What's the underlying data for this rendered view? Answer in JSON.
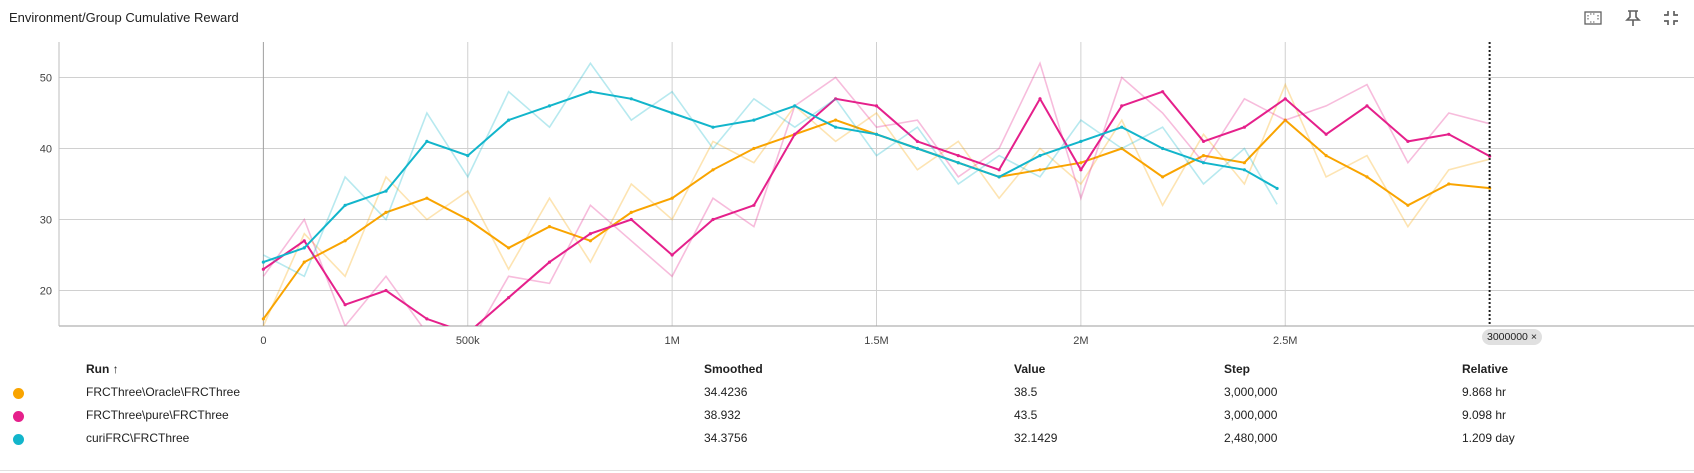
{
  "title": "Environment/Group Cumulative Reward",
  "toolbar": {
    "fit_icon": "fit-to-domain-icon",
    "pin_icon": "pin-icon",
    "collapse_icon": "exit-fullscreen-icon"
  },
  "step_chip": "3000000",
  "chip_close": "×",
  "legend": {
    "headers": {
      "run": "Run ↑",
      "smoothed": "Smoothed",
      "value": "Value",
      "step": "Step",
      "relative": "Relative"
    },
    "rows": [
      {
        "run": "FRCThree\\Oracle\\FRCThree",
        "smoothed": "34.4236",
        "value": "38.5",
        "step": "3,000,000",
        "relative": "9.868 hr",
        "color": "#f9a400"
      },
      {
        "run": "FRCThree\\pure\\FRCThree",
        "smoothed": "38.932",
        "value": "43.5",
        "step": "3,000,000",
        "relative": "9.098 hr",
        "color": "#e5208b"
      },
      {
        "run": "curiFRC\\FRCThree",
        "smoothed": "34.3756",
        "value": "32.1429",
        "step": "2,480,000",
        "relative": "1.209 day",
        "color": "#12b5cb"
      }
    ]
  },
  "chart_data": {
    "type": "line",
    "title": "Environment/Group Cumulative Reward",
    "xlabel": "",
    "ylabel": "",
    "xlim": [
      -500000,
      3500000
    ],
    "ylim": [
      15,
      55
    ],
    "x_ticks": [
      0,
      500000,
      1000000,
      1500000,
      2000000,
      2500000
    ],
    "x_tick_labels": [
      "0",
      "500k",
      "1M",
      "1.5M",
      "2M",
      "2.5M"
    ],
    "y_ticks": [
      20,
      30,
      40,
      50
    ],
    "y_tick_labels": [
      "20",
      "30",
      "40",
      "50"
    ],
    "grid": true,
    "cursor_step": 3000000,
    "series": [
      {
        "name": "FRCThree\\Oracle\\FRCThree",
        "color": "#f9a400",
        "x": [
          0,
          100000,
          200000,
          300000,
          400000,
          500000,
          600000,
          700000,
          800000,
          900000,
          1000000,
          1100000,
          1200000,
          1300000,
          1400000,
          1500000,
          1600000,
          1700000,
          1800000,
          1900000,
          2000000,
          2100000,
          2200000,
          2300000,
          2400000,
          2500000,
          2600000,
          2700000,
          2800000,
          2900000,
          3000000
        ],
        "y": [
          16,
          24,
          27,
          31,
          33,
          30,
          26,
          29,
          27,
          31,
          33,
          37,
          40,
          42,
          44,
          42,
          40,
          38,
          36,
          37,
          38,
          40,
          36,
          39,
          38,
          44,
          39,
          36,
          32,
          35,
          34.4236
        ],
        "raw_y": [
          15,
          28,
          22,
          36,
          30,
          34,
          23,
          33,
          24,
          35,
          30,
          41,
          38,
          46,
          41,
          45,
          37,
          41,
          33,
          40,
          35,
          44,
          32,
          42,
          35,
          49,
          36,
          39,
          29,
          37,
          38.5
        ]
      },
      {
        "name": "FRCThree\\pure\\FRCThree",
        "color": "#e5208b",
        "x": [
          0,
          100000,
          200000,
          300000,
          400000,
          500000,
          600000,
          700000,
          800000,
          900000,
          1000000,
          1100000,
          1200000,
          1300000,
          1400000,
          1500000,
          1600000,
          1700000,
          1800000,
          1900000,
          2000000,
          2100000,
          2200000,
          2300000,
          2400000,
          2500000,
          2600000,
          2700000,
          2800000,
          2900000,
          3000000
        ],
        "y": [
          23,
          27,
          18,
          20,
          16,
          14,
          19,
          24,
          28,
          30,
          25,
          30,
          32,
          42,
          47,
          46,
          41,
          39,
          37,
          47,
          37,
          46,
          48,
          41,
          43,
          47,
          42,
          46,
          41,
          42,
          38.932
        ],
        "raw_y": [
          22,
          30,
          15,
          22,
          14,
          12,
          22,
          21,
          32,
          27,
          22,
          33,
          29,
          46,
          50,
          43,
          44,
          36,
          40,
          52,
          33,
          50,
          45,
          38,
          47,
          44,
          46,
          49,
          38,
          45,
          43.5
        ]
      },
      {
        "name": "curiFRC\\FRCThree",
        "color": "#12b5cb",
        "x": [
          0,
          100000,
          200000,
          300000,
          400000,
          500000,
          600000,
          700000,
          800000,
          900000,
          1000000,
          1100000,
          1200000,
          1300000,
          1400000,
          1500000,
          1600000,
          1700000,
          1800000,
          1900000,
          2000000,
          2100000,
          2200000,
          2300000,
          2400000,
          2480000
        ],
        "y": [
          24,
          26,
          32,
          34,
          41,
          39,
          44,
          46,
          48,
          47,
          45,
          43,
          44,
          46,
          43,
          42,
          40,
          38,
          36,
          39,
          41,
          43,
          40,
          38,
          37,
          34.3756
        ],
        "raw_y": [
          25,
          22,
          36,
          30,
          45,
          36,
          48,
          43,
          52,
          44,
          48,
          40,
          47,
          43,
          47,
          39,
          43,
          35,
          39,
          36,
          44,
          40,
          43,
          35,
          40,
          32.1429
        ]
      }
    ]
  }
}
